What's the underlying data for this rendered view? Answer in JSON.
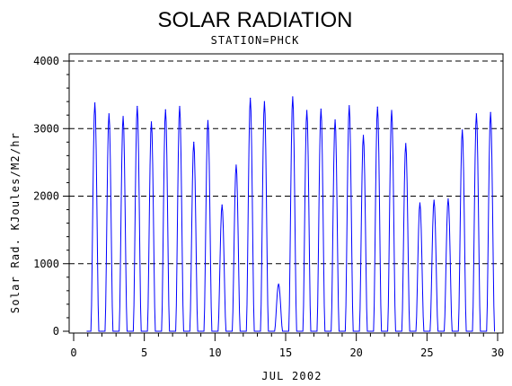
{
  "chart_data": {
    "type": "line",
    "title": "SOLAR RADIATION",
    "subtitle": "STATION=PHCK",
    "xlabel": "JUL 2002",
    "ylabel": "Solar Rad. KJoules/M2/hr",
    "xlim": [
      0,
      30
    ],
    "ylim": [
      0,
      4000
    ],
    "xticks": [
      0,
      5,
      10,
      15,
      20,
      25,
      30
    ],
    "yticks": [
      0,
      1000,
      2000,
      3000,
      4000
    ],
    "ytick_labels": [
      "0",
      "1000",
      "2000",
      "3000",
      "4000"
    ],
    "reference_lines_y": [
      1000,
      2000,
      3000,
      4000
    ],
    "series": [
      {
        "color": "#0000ff",
        "daily_peaks": [
          {
            "day": 1,
            "x": 1.5,
            "peak": 3380
          },
          {
            "day": 2,
            "x": 2.5,
            "peak": 3220
          },
          {
            "day": 3,
            "x": 3.5,
            "peak": 3180
          },
          {
            "day": 4,
            "x": 4.5,
            "peak": 3330
          },
          {
            "day": 5,
            "x": 5.5,
            "peak": 3100
          },
          {
            "day": 6,
            "x": 6.5,
            "peak": 3280
          },
          {
            "day": 7,
            "x": 7.5,
            "peak": 3330
          },
          {
            "day": 8,
            "x": 8.5,
            "peak": 2800
          },
          {
            "day": 9,
            "x": 9.5,
            "peak": 3120
          },
          {
            "day": 10,
            "x": 10.5,
            "peak": 1870
          },
          {
            "day": 11,
            "x": 11.5,
            "peak": 2460
          },
          {
            "day": 12,
            "x": 12.5,
            "peak": 3450
          },
          {
            "day": 13,
            "x": 13.5,
            "peak": 3400
          },
          {
            "day": 14,
            "x": 14.5,
            "peak": 700
          },
          {
            "day": 15,
            "x": 15.5,
            "peak": 3470
          },
          {
            "day": 16,
            "x": 16.5,
            "peak": 3270
          },
          {
            "day": 17,
            "x": 17.5,
            "peak": 3290
          },
          {
            "day": 18,
            "x": 18.5,
            "peak": 3130
          },
          {
            "day": 19,
            "x": 19.5,
            "peak": 3340
          },
          {
            "day": 20,
            "x": 20.5,
            "peak": 2900
          },
          {
            "day": 21,
            "x": 21.5,
            "peak": 3320
          },
          {
            "day": 22,
            "x": 22.5,
            "peak": 3270
          },
          {
            "day": 23,
            "x": 23.5,
            "peak": 2780
          },
          {
            "day": 24,
            "x": 24.5,
            "peak": 1900
          },
          {
            "day": 25,
            "x": 25.5,
            "peak": 1940
          },
          {
            "day": 26,
            "x": 26.5,
            "peak": 1960
          },
          {
            "day": 27,
            "x": 27.5,
            "peak": 2980
          },
          {
            "day": 28,
            "x": 28.5,
            "peak": 3220
          },
          {
            "day": 29,
            "x": 29.5,
            "peak": 3240
          }
        ]
      }
    ]
  }
}
